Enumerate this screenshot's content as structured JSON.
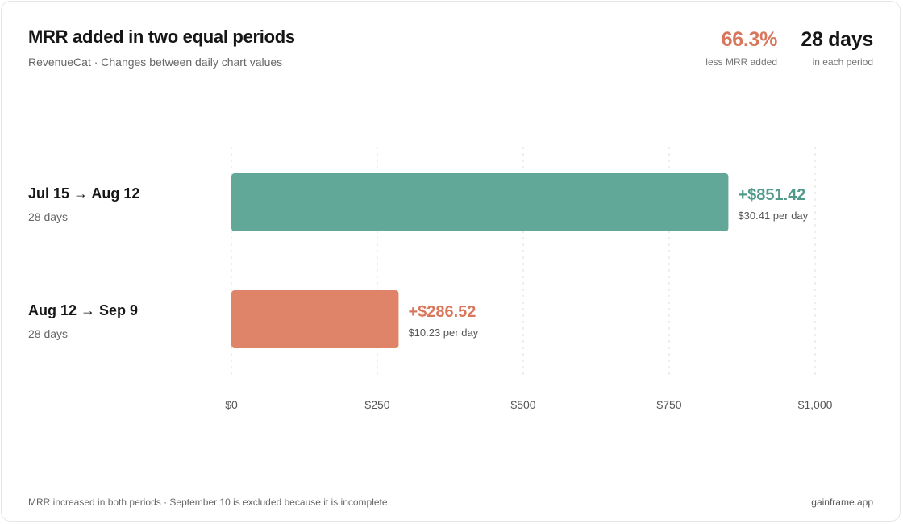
{
  "header": {
    "title": "MRR added in two equal periods",
    "subtitle": "RevenueCat · Changes between daily chart values"
  },
  "stats": [
    {
      "value": "66.3%",
      "label": "less MRR added",
      "color": "#d9775c"
    },
    {
      "value": "28 days",
      "label": "in each period",
      "color": "#161616"
    }
  ],
  "chart_data": {
    "type": "bar",
    "orientation": "horizontal",
    "categories": [
      "Jul 15 → Aug 12",
      "Aug 12 → Sep 9"
    ],
    "category_sublabels": [
      "28 days",
      "28 days"
    ],
    "values": [
      851.42,
      286.52
    ],
    "value_labels": [
      "+$851.42",
      "+$286.52"
    ],
    "per_day_labels": [
      "$30.41 per day",
      "$10.23 per day"
    ],
    "colors": [
      "#62a899",
      "#df8369"
    ],
    "label_colors": [
      "#4f9a89",
      "#d9775c"
    ],
    "xlim": [
      0,
      1000
    ],
    "xticks": [
      0,
      250,
      500,
      750,
      1000
    ],
    "xtick_labels": [
      "$0",
      "$250",
      "$500",
      "$750",
      "$1,000"
    ],
    "grid": true
  },
  "footer": {
    "note": "MRR increased in both periods · September 10 is excluded because it is incomplete.",
    "brand": "gainframe.app"
  }
}
